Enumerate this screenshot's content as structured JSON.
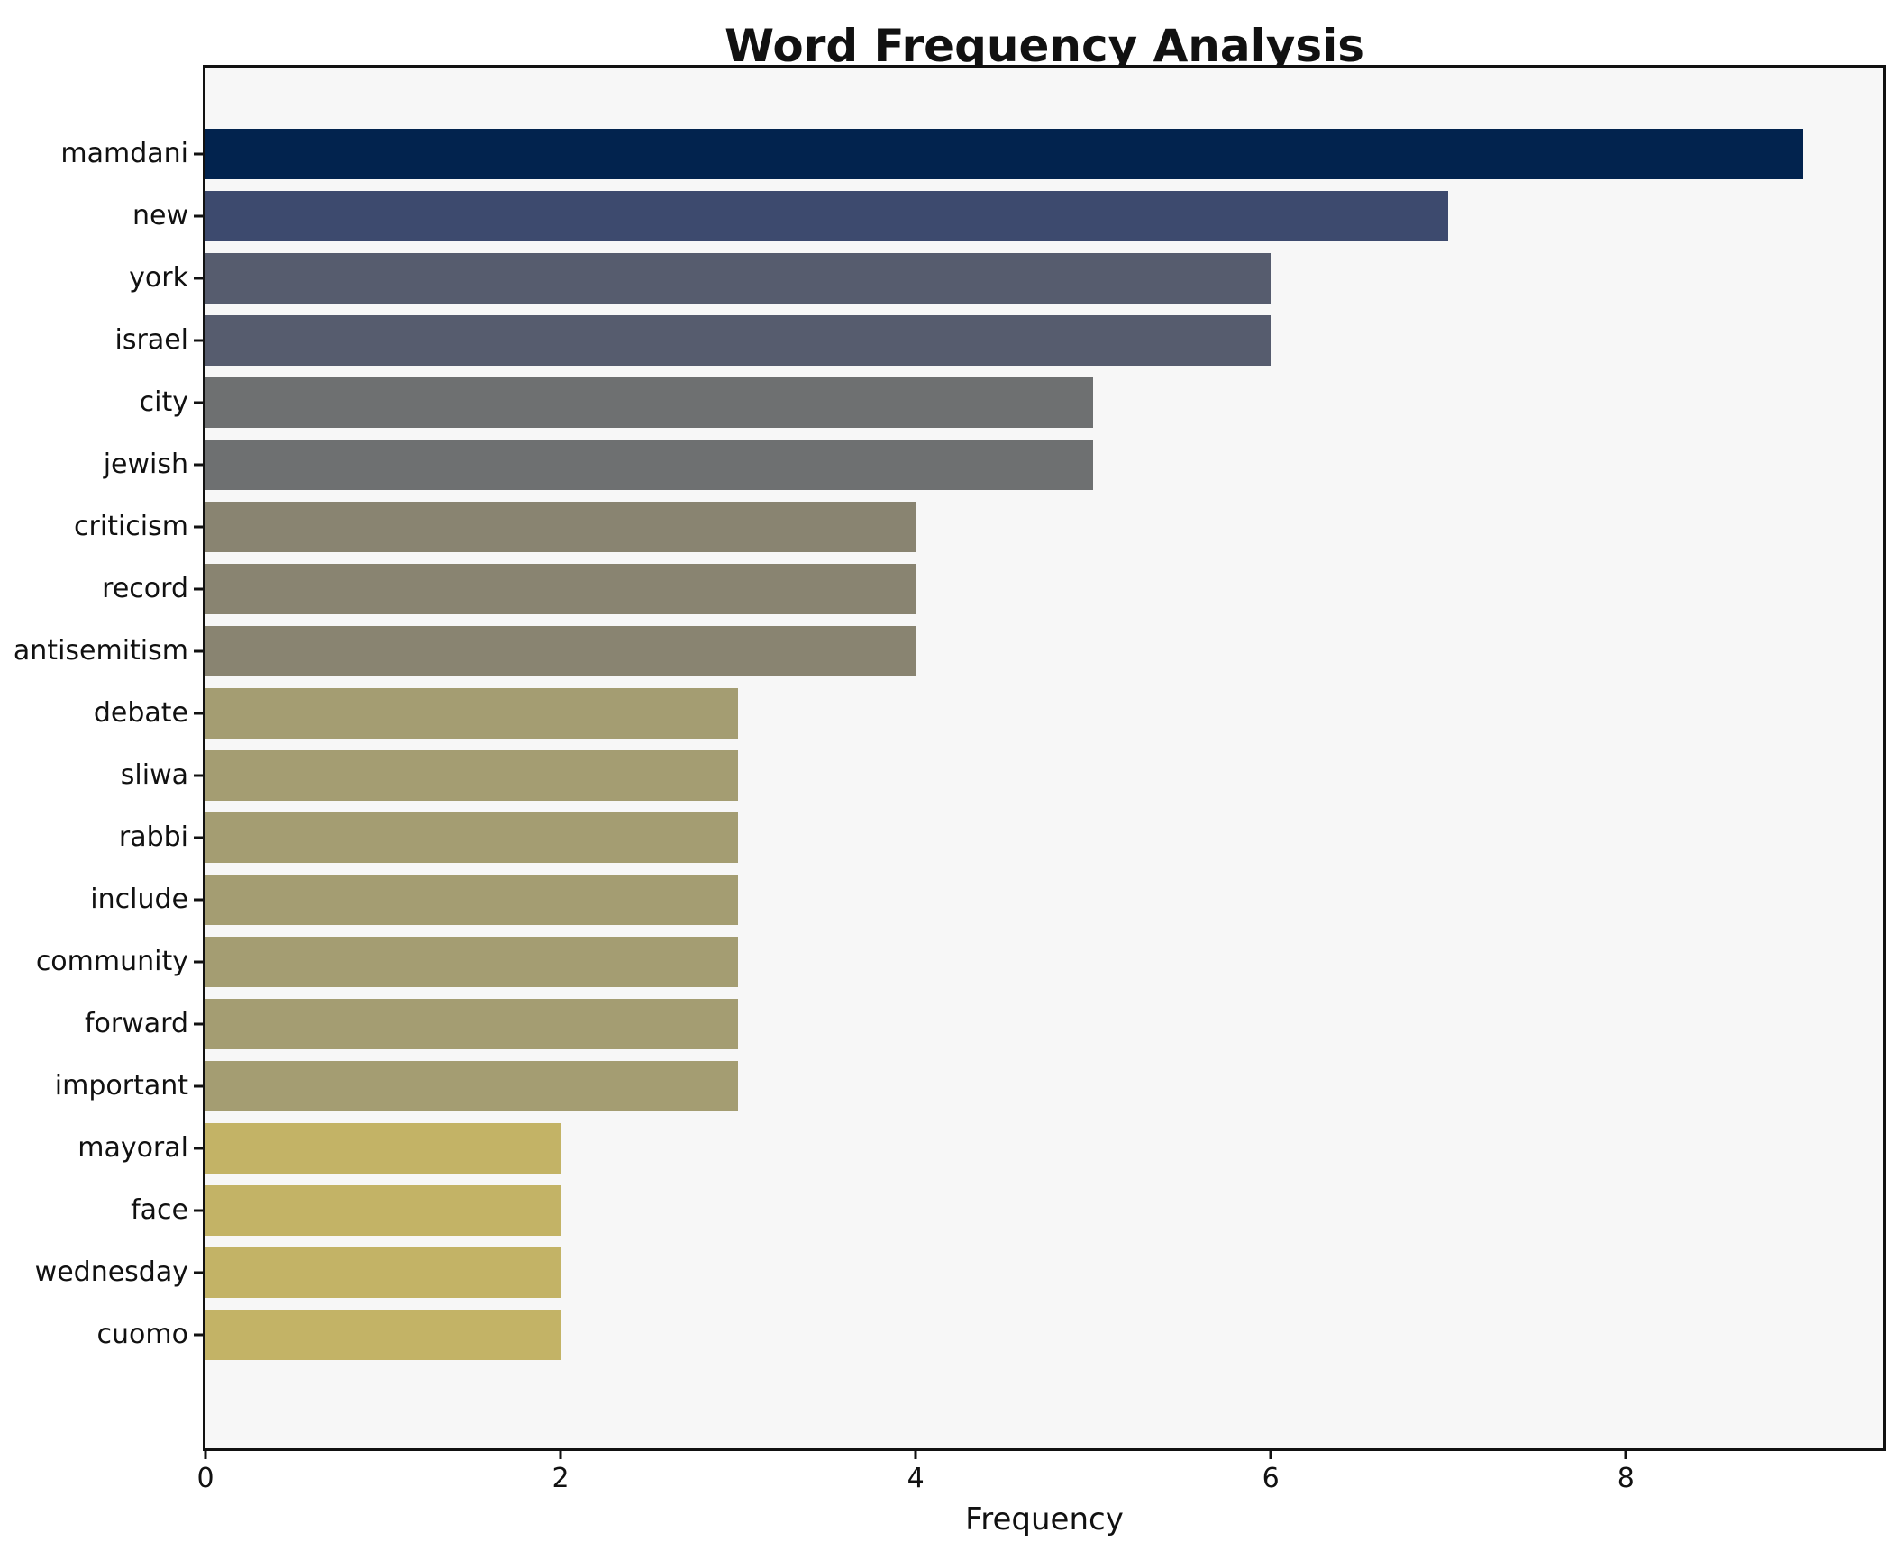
{
  "title": "Word Frequency Analysis",
  "xlabel": "Frequency",
  "chart_data": {
    "type": "bar",
    "orientation": "horizontal",
    "title": "Word Frequency Analysis",
    "xlabel": "Frequency",
    "ylabel": "",
    "categories": [
      "mamdani",
      "new",
      "york",
      "israel",
      "city",
      "jewish",
      "criticism",
      "record",
      "antisemitism",
      "debate",
      "sliwa",
      "rabbi",
      "include",
      "community",
      "forward",
      "important",
      "mayoral",
      "face",
      "wednesday",
      "cuomo"
    ],
    "values": [
      9,
      7,
      6,
      6,
      5,
      5,
      4,
      4,
      4,
      3,
      3,
      3,
      3,
      3,
      3,
      3,
      2,
      2,
      2,
      2
    ],
    "bar_colors": [
      "#02234e",
      "#3d4a6e",
      "#565c6e",
      "#565c6e",
      "#6e7071",
      "#6e7071",
      "#898471",
      "#898471",
      "#898471",
      "#a49d72",
      "#a49d72",
      "#a49d72",
      "#a49d72",
      "#a49d72",
      "#a49d72",
      "#a49d72",
      "#c3b366",
      "#c3b366",
      "#c3b366",
      "#c3b366"
    ],
    "x_ticks": [
      0,
      2,
      4,
      6,
      8
    ],
    "xlim": [
      0,
      9.45
    ],
    "grid": false,
    "legend": null,
    "plot_background": "#f7f7f7",
    "figure_background": "#ffffff",
    "spine_color": "#111111",
    "text_color": "#111111"
  }
}
